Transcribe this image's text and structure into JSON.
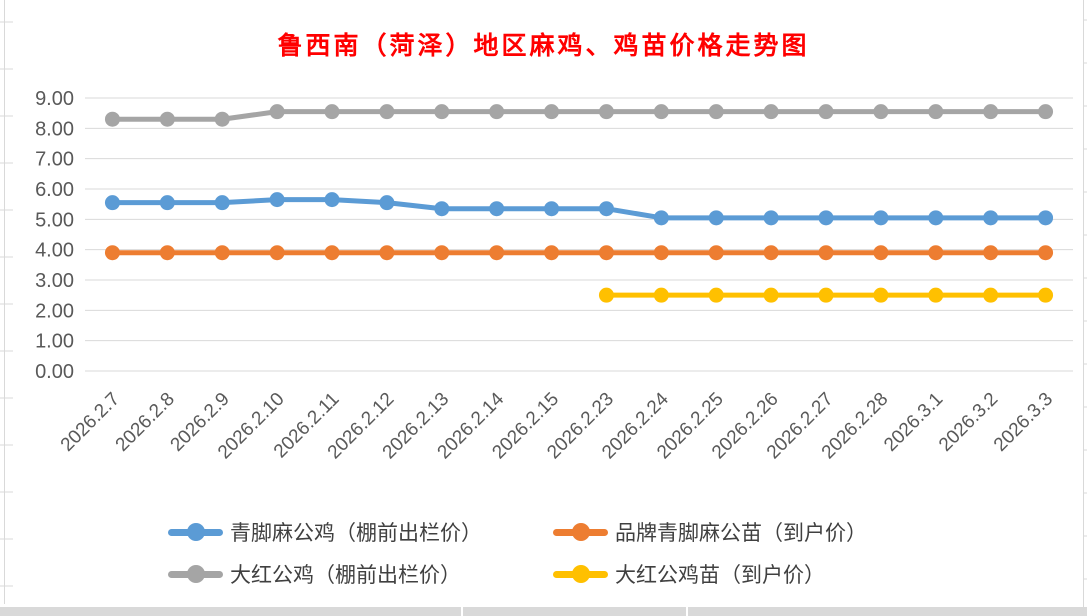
{
  "chart_data": {
    "type": "line",
    "title": "鲁西南（菏泽）地区麻鸡、鸡苗价格走势图",
    "categories": [
      "2026.2.7",
      "2026.2.8",
      "2026.2.9",
      "2026.2.10",
      "2026.2.11",
      "2026.2.12",
      "2026.2.13",
      "2026.2.14",
      "2026.2.15",
      "2026.2.23",
      "2026.2.24",
      "2026.2.25",
      "2026.2.26",
      "2026.2.27",
      "2026.2.28",
      "2026.3.1",
      "2026.3.2",
      "2026.3.3"
    ],
    "series": [
      {
        "name": "青脚麻公鸡（棚前出栏价）",
        "color": "#5B9BD5",
        "values": [
          5.55,
          5.55,
          5.55,
          5.65,
          5.65,
          5.55,
          5.35,
          5.35,
          5.35,
          5.35,
          5.05,
          5.05,
          5.05,
          5.05,
          5.05,
          5.05,
          5.05,
          5.05
        ]
      },
      {
        "name": "品牌青脚麻公苗（到户价）",
        "color": "#ED7D31",
        "values": [
          3.9,
          3.9,
          3.9,
          3.9,
          3.9,
          3.9,
          3.9,
          3.9,
          3.9,
          3.9,
          3.9,
          3.9,
          3.9,
          3.9,
          3.9,
          3.9,
          3.9,
          3.9
        ]
      },
      {
        "name": "大红公鸡（棚前出栏价）",
        "color": "#A5A5A5",
        "values": [
          8.3,
          8.3,
          8.3,
          8.55,
          8.55,
          8.55,
          8.55,
          8.55,
          8.55,
          8.55,
          8.55,
          8.55,
          8.55,
          8.55,
          8.55,
          8.55,
          8.55,
          8.55
        ]
      },
      {
        "name": "大红公鸡苗（到户价）",
        "color": "#FFC000",
        "values": [
          null,
          null,
          null,
          null,
          null,
          null,
          null,
          null,
          null,
          2.5,
          2.5,
          2.5,
          2.5,
          2.5,
          2.5,
          2.5,
          2.5,
          2.5
        ]
      }
    ],
    "y_axis": {
      "min": 0,
      "max": 9,
      "step": 1,
      "tick_labels": [
        "0.00",
        "1.00",
        "2.00",
        "3.00",
        "4.00",
        "5.00",
        "6.00",
        "7.00",
        "8.00",
        "9.00"
      ]
    },
    "grid": true,
    "legend_position": "bottom"
  },
  "styles": {
    "title_color": "#FF0000",
    "axis_text_color": "#595959",
    "legend_text_color": "#404040",
    "gridline_color": "#D9D9D9",
    "sheet_edge_color": "#D9D9D9",
    "background": "#FFFFFF"
  }
}
